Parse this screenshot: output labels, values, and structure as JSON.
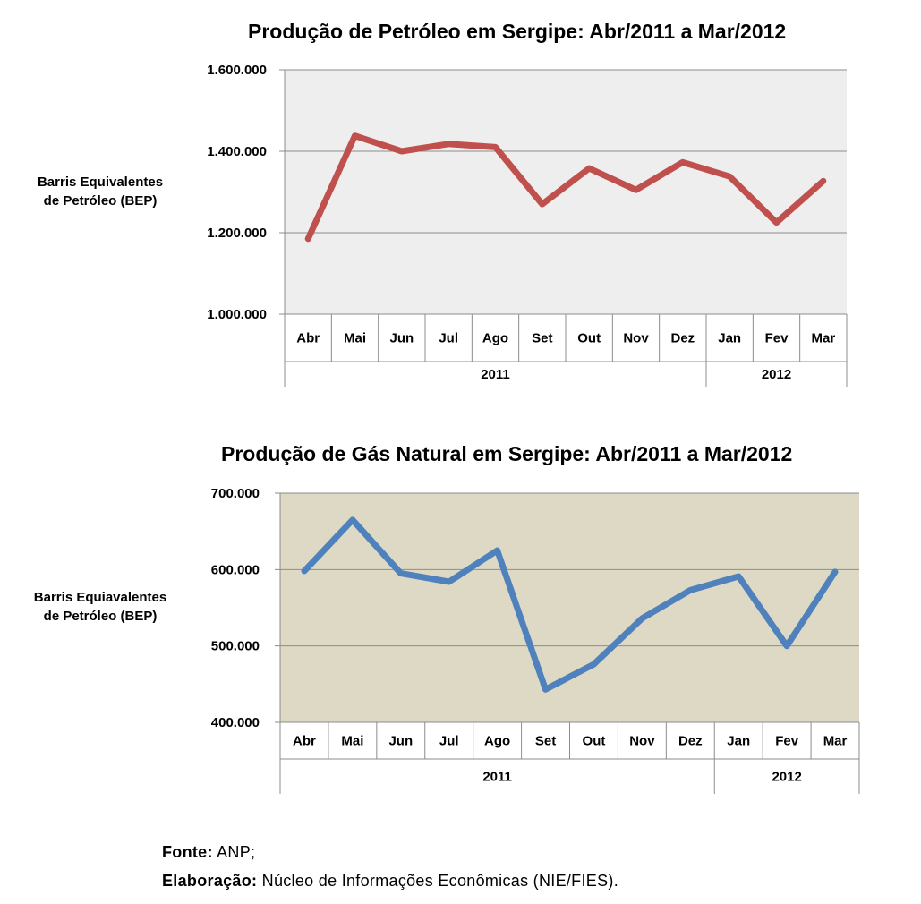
{
  "chart_data": [
    {
      "type": "line",
      "title": "Produção de Petróleo em Sergipe: Abr/2011 a Mar/2012",
      "ylabel_lines": [
        "Barris Equivalentes",
        "de Petróleo (BEP)"
      ],
      "categories": [
        "Abr",
        "Mai",
        "Jun",
        "Jul",
        "Ago",
        "Set",
        "Out",
        "Nov",
        "Dez",
        "Jan",
        "Fev",
        "Mar"
      ],
      "year_groups": [
        {
          "label": "2011",
          "count": 9
        },
        {
          "label": "2012",
          "count": 3
        }
      ],
      "yticks": [
        "1.000.000",
        "1.200.000",
        "1.400.000",
        "1.600.000"
      ],
      "ylim": [
        1000000,
        1600000
      ],
      "series": [
        {
          "values": [
            1185000,
            1438000,
            1400000,
            1418000,
            1410000,
            1270000,
            1358000,
            1305000,
            1373000,
            1338000,
            1225000,
            1327000
          ],
          "color": "#c0504d"
        }
      ],
      "plot_bg": "#eeeeee",
      "grid": true
    },
    {
      "type": "line",
      "title": "Produção de Gás Natural em Sergipe: Abr/2011 a Mar/2012",
      "ylabel_lines": [
        "Barris Equiavalentes",
        "de Petróleo (BEP)"
      ],
      "categories": [
        "Abr",
        "Mai",
        "Jun",
        "Jul",
        "Ago",
        "Set",
        "Out",
        "Nov",
        "Dez",
        "Jan",
        "Fev",
        "Mar"
      ],
      "year_groups": [
        {
          "label": "2011",
          "count": 9
        },
        {
          "label": "2012",
          "count": 3
        }
      ],
      "yticks": [
        "400.000",
        "500.000",
        "600.000",
        "700.000"
      ],
      "ylim": [
        400000,
        700000
      ],
      "series": [
        {
          "values": [
            598000,
            665000,
            595000,
            584000,
            625000,
            443000,
            476000,
            536000,
            573000,
            591000,
            500000,
            597000
          ],
          "color": "#4f81bd"
        }
      ],
      "plot_bg": "#ddd9c4",
      "grid": true
    }
  ],
  "footer": {
    "source_label": "Fonte:",
    "source_value": " ANP;",
    "credit_label": "Elaboração:",
    "credit_value": " Núcleo de Informações Econômicas (NIE/FIES)."
  }
}
